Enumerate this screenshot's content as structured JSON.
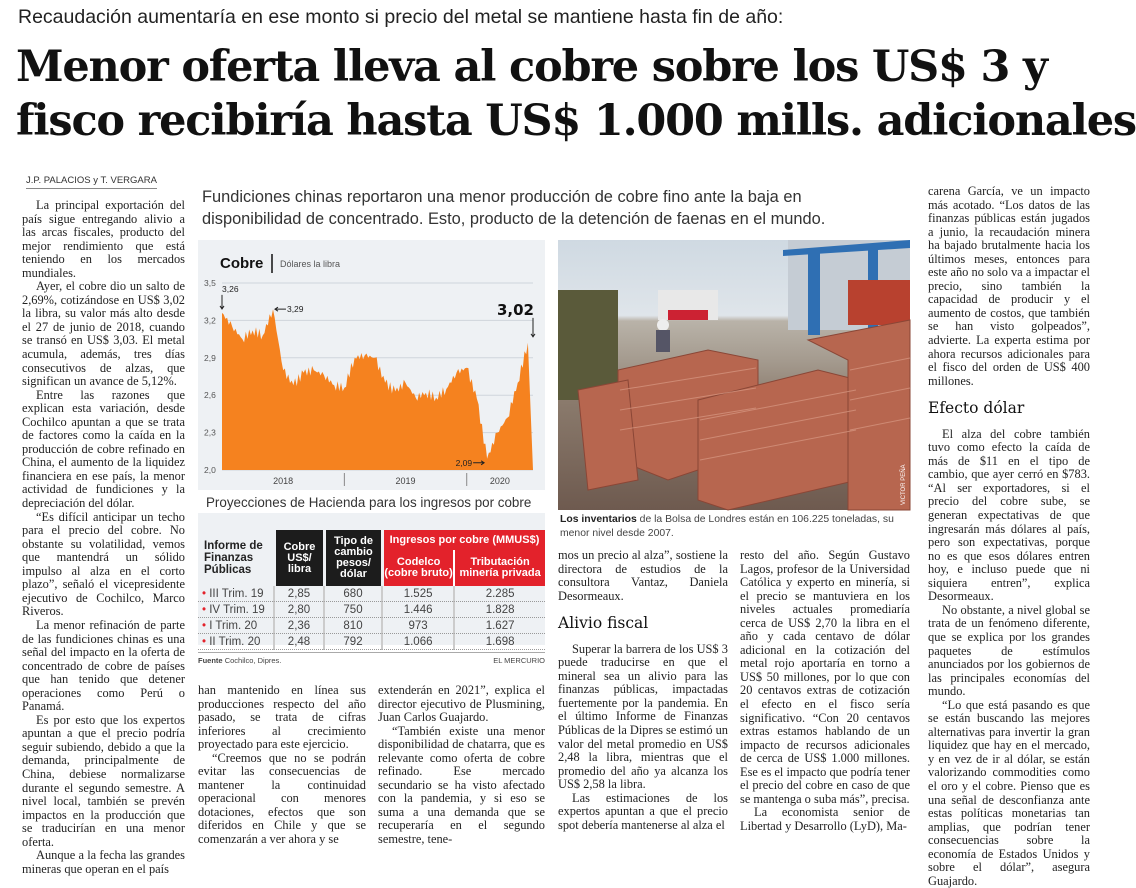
{
  "kicker": "Recaudación aumentaría en ese monto si precio del metal se mantiene hasta fin de año:",
  "headline": {
    "line1": "Menor oferta lleva al cobre sobre los US$ 3 y",
    "line2": "fisco recibiría hasta US$ 1.000 mills. adicionales"
  },
  "byline": "J.P. PALACIOS y T. VERGARA",
  "deck": "Fundiciones chinas reportaron una menor producción de cobre fino ante la baja en disponibilidad de concentrado. Esto, producto de la detención de faenas en el mundo.",
  "col1": [
    "La principal exportación del país sigue entregando alivio a las arcas fiscales, producto del mejor rendimiento que está teniendo en los mercados mundiales.",
    "Ayer, el cobre dio un salto de 2,69%, cotizándose en US$ 3,02 la libra, su valor más alto desde el 27 de junio de 2018, cuando se transó en US$ 3,03. El metal acumula, además, tres días consecutivos de alzas, que significan un avance de 5,12%.",
    "Entre las razones que explican esta variación, desde Cochilco apuntan a que se trata de factores como la caída en la producción de cobre refinado en China, el aumento de la liquidez financiera en ese país, la menor actividad de fundiciones y la depreciación del dólar.",
    "“Es difícil anticipar un techo para el precio del cobre. No obstante su volatilidad, vemos que mantendrá un sólido impulso al alza en el corto plazo”, señaló el vicepresidente ejecutivo de Cochilco, Marco Riveros.",
    "La menor refinación de parte de las fundiciones chinas es una señal del impacto en la oferta de concentrado de cobre de países que han tenido que detener operaciones como Perú o Panamá.",
    "Es por esto que los expertos apuntan a que el precio podría seguir subiendo, debido a que la demanda, principalmente de China, debiese normalizarse durante el segundo semestre. A nivel local, también se prevén impactos en la producción que se traducirían en una menor oferta.",
    "Aunque a la fecha las grandes mineras que operan en el país"
  ],
  "col2": [
    "han mantenido en línea sus producciones respecto del año pasado, se trata de cifras inferiores al crecimiento proyectado para este ejercicio.",
    "“Creemos que no se podrán evitar las consecuencias de mantener la continuidad operacional con menores dotaciones, efectos que son diferidos en Chile y que se comenzarán a ver ahora y se"
  ],
  "col3": [
    "extenderán en 2021”, explica el director ejecutivo de Plusmining, Juan Carlos Guajardo.",
    "“También existe una menor disponibilidad de chatarra, que es relevante como oferta de cobre refinado. Ese mercado secundario se ha visto afectado con la pandemia, y si eso se suma a una demanda que se recuperaría en el segundo semestre, tene-"
  ],
  "col4": {
    "a": [
      "mos un precio al alza”, sostiene la directora de estudios de la consultora Vantaz, Daniela Desormeaux."
    ],
    "heading": "Alivio fiscal",
    "b": [
      "Superar la barrera de los US$ 3 puede traducirse en que el mineral sea un alivio para las finanzas públicas, impactadas fuertemente por la pandemia. En el último Informe de Finanzas Públicas de la Dipres se estimó un valor del metal promedio en US$ 2,48 la libra, mientras que el promedio del año ya alcanza los US$ 2,58 la libra.",
      "Las estimaciones de los expertos apuntan a que el precio spot debería mantenerse al alza el"
    ]
  },
  "col5": [
    "resto del año. Según Gustavo Lagos, profesor de la Universidad Católica y experto en minería, si el precio se mantuviera en los niveles actuales promediaría cerca de US$ 2,70 la libra en el año y cada centavo de dólar adicional en la cotización del metal rojo aportaría en torno a US$ 50 millones, por lo que con 20 centavos extras de cotización el efecto en el fisco sería significativo. “Con 20 centavos extras estamos hablando de un impacto de recursos adicionales de cerca de US$ 1.000 millones. Ese es el impacto que podría tener el precio del cobre en caso de que se mantenga o suba más”, precisa.",
    "La economista senior de Libertad y Desarrollo (LyD), Ma-"
  ],
  "col6": {
    "a": [
      "carena García, ve un impacto más acotado. “Los datos de las finanzas públicas están jugados a junio, la recaudación minera ha bajado brutalmente hacia los últimos meses, entonces para este año no solo va a impactar el precio, sino también la capacidad de producir y el aumento de costos, que también se han visto golpeados”, advierte. La experta estima por ahora recursos adicionales para el fisco del orden de US$ 400 millones."
    ],
    "heading": "Efecto dólar",
    "b": [
      "El alza del cobre también tuvo como efecto la caída de más de $11 en el tipo de cambio, que ayer cerró en $783. “Al ser exportadores, si el precio del cobre sube, se generan expectativas de que ingresarán más dólares al país, pero son expectativas, porque no es que esos dólares entren hoy, e incluso puede que ni siquiera entren”, explica Desormeaux.",
      "No obstante, a nivel global se trata de un fenómeno diferente, que se explica por los grandes paquetes de estímulos anunciados por los gobiernos de las principales economías del mundo.",
      "“Lo que está pasando es que se están buscando las mejores alternativas para invertir la gran liquidez que hay en el mercado, y en vez de ir al dólar, se están valorizando commodities como el oro y el cobre. Pienso que es una señal de desconfianza ante estas políticas monetarias tan amplias, que podrían tener consecuencias sobre la economía de Estados Unidos y sobre el dólar”, asegura Guajardo."
    ]
  },
  "chart_data": {
    "type": "area",
    "title": "Cobre",
    "subtitle": "Dólares la libra",
    "color": "#f5821f",
    "ylim": [
      2.0,
      3.5
    ],
    "yticks": [
      "3,5",
      "3,2",
      "2,9",
      "2,6",
      "2,3",
      "2,0"
    ],
    "xticks": [
      "2018",
      "2019",
      "2020"
    ],
    "xrange": [
      "2018-01",
      "2020-07"
    ],
    "grid": true,
    "x": [
      "2018-01",
      "2018-02",
      "2018-03",
      "2018-04",
      "2018-05",
      "2018-06",
      "2018-07",
      "2018-08",
      "2018-09",
      "2018-10",
      "2018-11",
      "2018-12",
      "2019-01",
      "2019-02",
      "2019-03",
      "2019-04",
      "2019-05",
      "2019-06",
      "2019-07",
      "2019-08",
      "2019-09",
      "2019-10",
      "2019-11",
      "2019-12",
      "2020-01",
      "2020-02",
      "2020-03",
      "2020-04",
      "2020-05",
      "2020-06",
      "2020-07"
    ],
    "values": [
      3.26,
      3.15,
      3.05,
      3.12,
      3.08,
      3.29,
      2.8,
      2.68,
      2.78,
      2.8,
      2.76,
      2.68,
      2.66,
      2.9,
      2.92,
      2.9,
      2.7,
      2.63,
      2.7,
      2.58,
      2.62,
      2.58,
      2.65,
      2.78,
      2.82,
      2.57,
      2.09,
      2.3,
      2.42,
      2.7,
      3.02
    ],
    "annotations": [
      {
        "label": "3,26",
        "x": "2018-01",
        "y": 3.26
      },
      {
        "label": "3,29",
        "x": "2018-06",
        "y": 3.29
      },
      {
        "label": "2,09",
        "x": "2020-03",
        "y": 2.09
      },
      {
        "label": "3,02",
        "x": "2020-07",
        "y": 3.02
      }
    ]
  },
  "table": {
    "title": "Proyecciones de Hacienda para los ingresos por cobre",
    "col0": "Informe de Finanzas Públicas",
    "col1": "Cobre US$/ libra",
    "col2": "Tipo de cambio pesos/ dólar",
    "group": "Ingresos por cobre (MMUS$)",
    "col3": "Codelco (cobre bruto)",
    "col4": "Tributación minería privada",
    "rows": [
      [
        "III Trim. 19",
        "2,85",
        "680",
        "1.525",
        "2.285"
      ],
      [
        "IV Trim. 19",
        "2,80",
        "750",
        "1.446",
        "1.828"
      ],
      [
        "I Trim. 20",
        "2,36",
        "810",
        "973",
        "1.627"
      ],
      [
        "II Trim. 20",
        "2,48",
        "792",
        "1.066",
        "1.698"
      ]
    ],
    "source_label": "Fuente",
    "source": "Cochilco, Dipres.",
    "credit": "EL MERCURIO",
    "accent": "#e3222b"
  },
  "photo": {
    "credit": "VICTOR PEÑA",
    "caption_bold": "Los inventarios",
    "caption": " de la Bolsa de Londres están en 106.225 toneladas, su menor nivel desde 2007."
  }
}
